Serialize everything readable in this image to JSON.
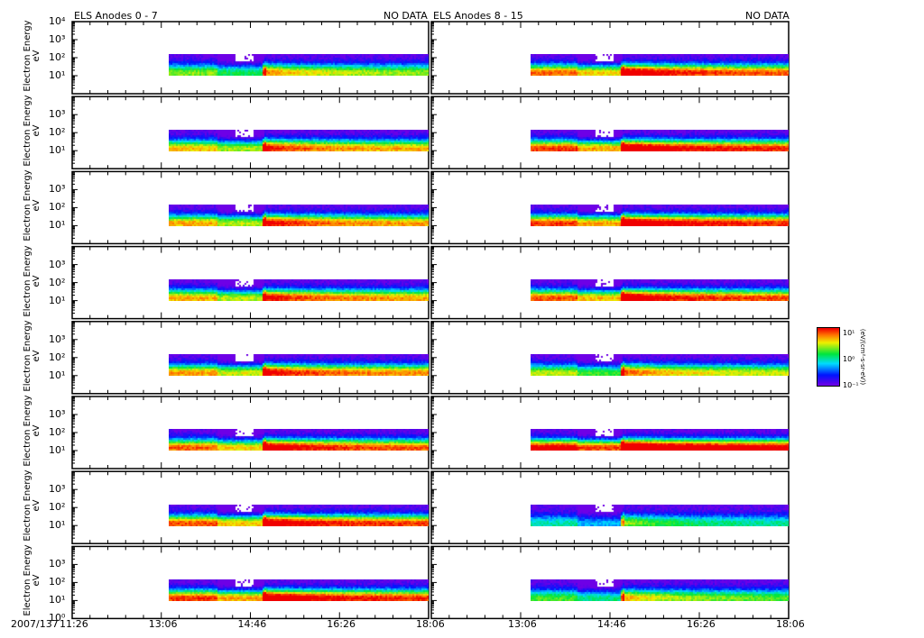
{
  "chart_data": {
    "type": "heatmap",
    "title_left": "ELS Anodes 0 - 7",
    "title_right": "ELS Anodes 8 - 15",
    "no_data_left": "NO DATA",
    "no_data_right": "NO DATA",
    "date_label": "2007/137",
    "ylabel": "Electron Energy",
    "yunit": "eV",
    "ylim_log10": [
      0,
      4
    ],
    "y_ticks": [
      "10⁰",
      "10¹",
      "10²",
      "10³",
      "10⁴"
    ],
    "x_range_minutes": [
      686,
      1086
    ],
    "x_ticks": [
      {
        "label": "11:26",
        "min": 686
      },
      {
        "label": "13:06",
        "min": 786
      },
      {
        "label": "14:46",
        "min": 886
      },
      {
        "label": "16:26",
        "min": 986
      },
      {
        "label": "18:06",
        "min": 1086
      }
    ],
    "data_energy_range_eV": [
      10,
      150
    ],
    "data_start_min_left": 794,
    "data_start_min_right": 797,
    "gap_minutes": [
      868,
      888
    ],
    "onset_minute": 900,
    "panels_left": [
      0.55,
      0.7,
      0.72,
      0.72,
      0.74,
      0.8,
      0.82,
      0.85
    ],
    "panels_right": [
      0.8,
      0.85,
      0.85,
      0.82,
      0.6,
      0.95,
      0.35,
      0.5
    ],
    "colorbar": {
      "ticks": [
        "10⁻¹",
        "10⁰",
        "10¹"
      ],
      "label": "(eV/(cm²-s-sr-eV))"
    }
  }
}
